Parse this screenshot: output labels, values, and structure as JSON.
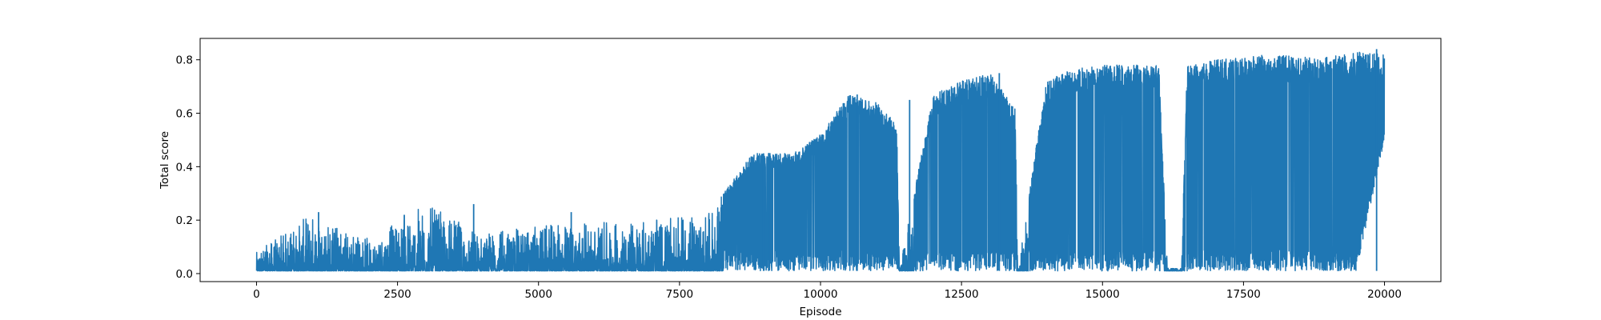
{
  "chart_data": {
    "type": "line",
    "title": "",
    "xlabel": "Episode",
    "ylabel": "Total score",
    "xlim": [
      -1000,
      21000
    ],
    "ylim": [
      -0.03,
      0.88
    ],
    "xticks": [
      0,
      2500,
      5000,
      7500,
      10000,
      12500,
      15000,
      17500,
      20000
    ],
    "xtick_labels": [
      "0",
      "2500",
      "5000",
      "7500",
      "10000",
      "12500",
      "15000",
      "17500",
      "20000"
    ],
    "yticks": [
      0.0,
      0.2,
      0.4,
      0.6,
      0.8
    ],
    "ytick_labels": [
      "0.0",
      "0.2",
      "0.4",
      "0.6",
      "0.8"
    ],
    "grid": false,
    "legend": "none",
    "series": [
      {
        "color": "#1f77b4",
        "description_x": "Episode",
        "x": [
          0,
          1000,
          2000,
          3000,
          4000,
          5000,
          6000,
          7000,
          8000,
          8800,
          9500,
          10000,
          10500,
          11000,
          11350,
          11400,
          12000,
          12500,
          13000,
          13450,
          13500,
          14000,
          14500,
          15000,
          15500,
          16000,
          16150,
          16400,
          16500,
          17000,
          17500,
          18000,
          18500,
          19000,
          19500,
          20000
        ],
        "y_max": [
          0.08,
          0.23,
          0.13,
          0.26,
          0.15,
          0.18,
          0.19,
          0.2,
          0.22,
          0.45,
          0.45,
          0.52,
          0.67,
          0.64,
          0.56,
          0.02,
          0.67,
          0.72,
          0.75,
          0.62,
          0.02,
          0.72,
          0.77,
          0.78,
          0.78,
          0.78,
          0.02,
          0.02,
          0.78,
          0.8,
          0.81,
          0.82,
          0.81,
          0.81,
          0.83,
          0.82
        ],
        "y_min": [
          0.01,
          0.01,
          0.01,
          0.01,
          0.01,
          0.01,
          0.01,
          0.01,
          0.01,
          0.01,
          0.01,
          0.01,
          0.01,
          0.01,
          0.01,
          0.01,
          0.01,
          0.01,
          0.01,
          0.01,
          0.01,
          0.01,
          0.01,
          0.01,
          0.01,
          0.01,
          0.01,
          0.01,
          0.01,
          0.01,
          0.01,
          0.01,
          0.01,
          0.01,
          0.01,
          0.5
        ],
        "spikes": [
          {
            "x": 1100,
            "y": 0.23
          },
          {
            "x": 2620,
            "y": 0.22
          },
          {
            "x": 3850,
            "y": 0.26
          },
          {
            "x": 5580,
            "y": 0.23
          },
          {
            "x": 8990,
            "y": 0.45
          },
          {
            "x": 9080,
            "y": 0.45
          },
          {
            "x": 10650,
            "y": 0.67
          },
          {
            "x": 11580,
            "y": 0.65
          },
          {
            "x": 13170,
            "y": 0.75
          },
          {
            "x": 19860,
            "y": 0.84
          }
        ]
      }
    ]
  }
}
